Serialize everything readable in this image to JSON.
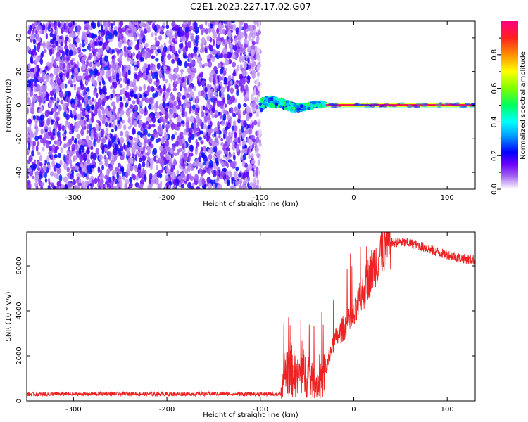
{
  "title": "C2E1.2023.227.17.02.G07",
  "chart_data": [
    {
      "type": "heatmap",
      "xlabel": "Height of straight line (km)",
      "ylabel": "Frequency (Hz)",
      "xlim": [
        -350,
        130
      ],
      "ylim": [
        -50,
        50
      ],
      "x_ticks": [
        -300,
        -200,
        -100,
        0,
        100
      ],
      "y_ticks": [
        -40,
        -20,
        0,
        20,
        40
      ],
      "grid": false,
      "colorbar": {
        "label": "Normalized spectral amplitude",
        "range": [
          0,
          1
        ],
        "ticks": [
          0.0,
          0.2,
          0.4,
          0.6,
          0.8
        ],
        "tick_labels": [
          "0.0",
          "0.2",
          "0.4",
          "0.6",
          "0.8"
        ]
      },
      "regions": [
        {
          "x": [
            -350,
            -100
          ],
          "frequency_spread": [
            -50,
            50
          ],
          "amplitude": [
            0.05,
            0.25
          ],
          "description": "diffuse purple noise"
        },
        {
          "x": [
            -100,
            -30
          ],
          "frequency_spread": [
            -10,
            8
          ],
          "amplitude": [
            0.2,
            0.55
          ],
          "description": "wobbling narrow signal"
        },
        {
          "x": [
            -30,
            130
          ],
          "frequency_spread": [
            -1,
            1
          ],
          "amplitude": [
            0.8,
            1.0
          ],
          "description": "steady tone near 0 Hz"
        }
      ]
    },
    {
      "type": "line",
      "xlabel": "Height of straight line (km)",
      "ylabel": "SNR (10 * v/v)",
      "xlim": [
        -350,
        130
      ],
      "ylim": [
        0,
        7500
      ],
      "x_ticks": [
        -300,
        -200,
        -100,
        0,
        100
      ],
      "y_ticks": [
        0,
        2000,
        4000,
        6000
      ],
      "color": "#ee2222",
      "series": [
        {
          "x": [
            -350,
            -300,
            -250,
            -200,
            -150,
            -100,
            -78,
            -75,
            -70,
            -65,
            -60,
            -55,
            -50,
            -45,
            -40,
            -35,
            -30,
            -25,
            -20,
            -15,
            -10,
            -5,
            0,
            5,
            10,
            15,
            20,
            25,
            30,
            35,
            40,
            45,
            50,
            60,
            70,
            80,
            90,
            100,
            110,
            120,
            130
          ],
          "y": [
            300,
            300,
            320,
            300,
            320,
            300,
            300,
            1200,
            1500,
            1300,
            1000,
            1300,
            1100,
            900,
            800,
            900,
            1300,
            2200,
            2700,
            3000,
            3300,
            3500,
            3700,
            4300,
            4800,
            5400,
            5900,
            6300,
            6700,
            6900,
            7000,
            7050,
            7050,
            7000,
            6900,
            6750,
            6600,
            6500,
            6400,
            6300,
            6250
          ]
        }
      ]
    }
  ]
}
